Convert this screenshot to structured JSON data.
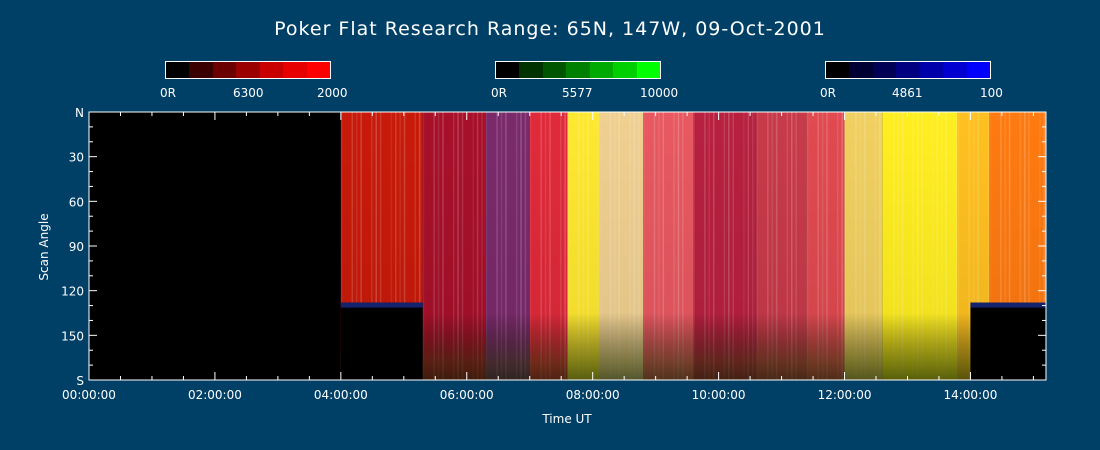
{
  "title": "Poker Flat Research Range: 65N, 147W, 09-Oct-2001",
  "colorbars": [
    {
      "name": "6300",
      "min_label": "0R",
      "max_label": "2000",
      "colors": [
        "#000000",
        "#3a0000",
        "#6a0000",
        "#9a0000",
        "#c80000",
        "#e60000",
        "#ff0000"
      ]
    },
    {
      "name": "5577",
      "min_label": "0R",
      "max_label": "10000",
      "colors": [
        "#000000",
        "#003300",
        "#005500",
        "#008000",
        "#00aa00",
        "#00d000",
        "#00ff00"
      ]
    },
    {
      "name": "4861",
      "min_label": "0R",
      "max_label": "100",
      "colors": [
        "#000000",
        "#000033",
        "#000055",
        "#000080",
        "#0000aa",
        "#0000d0",
        "#0000ff"
      ]
    }
  ],
  "chart_data": {
    "type": "heatmap",
    "title": "Poker Flat Research Range: 65N, 147W, 09-Oct-2001",
    "xlabel": "Time UT",
    "ylabel": "Scan Angle",
    "x_ticks": [
      "00:00:00",
      "02:00:00",
      "04:00:00",
      "06:00:00",
      "08:00:00",
      "10:00:00",
      "12:00:00",
      "14:00:00"
    ],
    "x_tick_hours": [
      0,
      2,
      4,
      6,
      8,
      10,
      12,
      14
    ],
    "xlim_hours": [
      0,
      15.2
    ],
    "y_ticks": [
      "N",
      "30",
      "60",
      "90",
      "120",
      "150",
      "S"
    ],
    "y_tick_values": [
      0,
      30,
      60,
      90,
      120,
      150,
      180
    ],
    "ylim": [
      0,
      180
    ],
    "segments": [
      {
        "t0": 0.0,
        "t1": 4.0,
        "color": "#000000"
      },
      {
        "t0": 4.0,
        "t1": 5.3,
        "color": "#c81a0a"
      },
      {
        "t0": 5.3,
        "t1": 6.3,
        "color": "#a8102a"
      },
      {
        "t0": 6.3,
        "t1": 7.0,
        "color": "#7a2a6a"
      },
      {
        "t0": 7.0,
        "t1": 7.6,
        "color": "#e02a3a"
      },
      {
        "t0": 7.6,
        "t1": 8.1,
        "color": "#ffe830"
      },
      {
        "t0": 8.1,
        "t1": 8.8,
        "color": "#f0d090"
      },
      {
        "t0": 8.8,
        "t1": 9.6,
        "color": "#e85860"
      },
      {
        "t0": 9.6,
        "t1": 10.6,
        "color": "#b82040"
      },
      {
        "t0": 10.6,
        "t1": 11.4,
        "color": "#c83a4a"
      },
      {
        "t0": 11.4,
        "t1": 12.0,
        "color": "#e04a50"
      },
      {
        "t0": 12.0,
        "t1": 12.6,
        "color": "#f0d060"
      },
      {
        "t0": 12.6,
        "t1": 13.8,
        "color": "#ffee20"
      },
      {
        "t0": 13.8,
        "t1": 14.3,
        "color": "#ffc020"
      },
      {
        "t0": 14.3,
        "t1": 15.2,
        "color": "#ff7a10"
      }
    ],
    "no_data_regions": [
      {
        "t0": 4.0,
        "t1": 5.3,
        "angle0": 128,
        "angle1": 180
      },
      {
        "t0": 14.0,
        "t1": 15.2,
        "angle0": 128,
        "angle1": 180
      }
    ],
    "colorbars": [
      "6300",
      "5577",
      "4861"
    ]
  }
}
